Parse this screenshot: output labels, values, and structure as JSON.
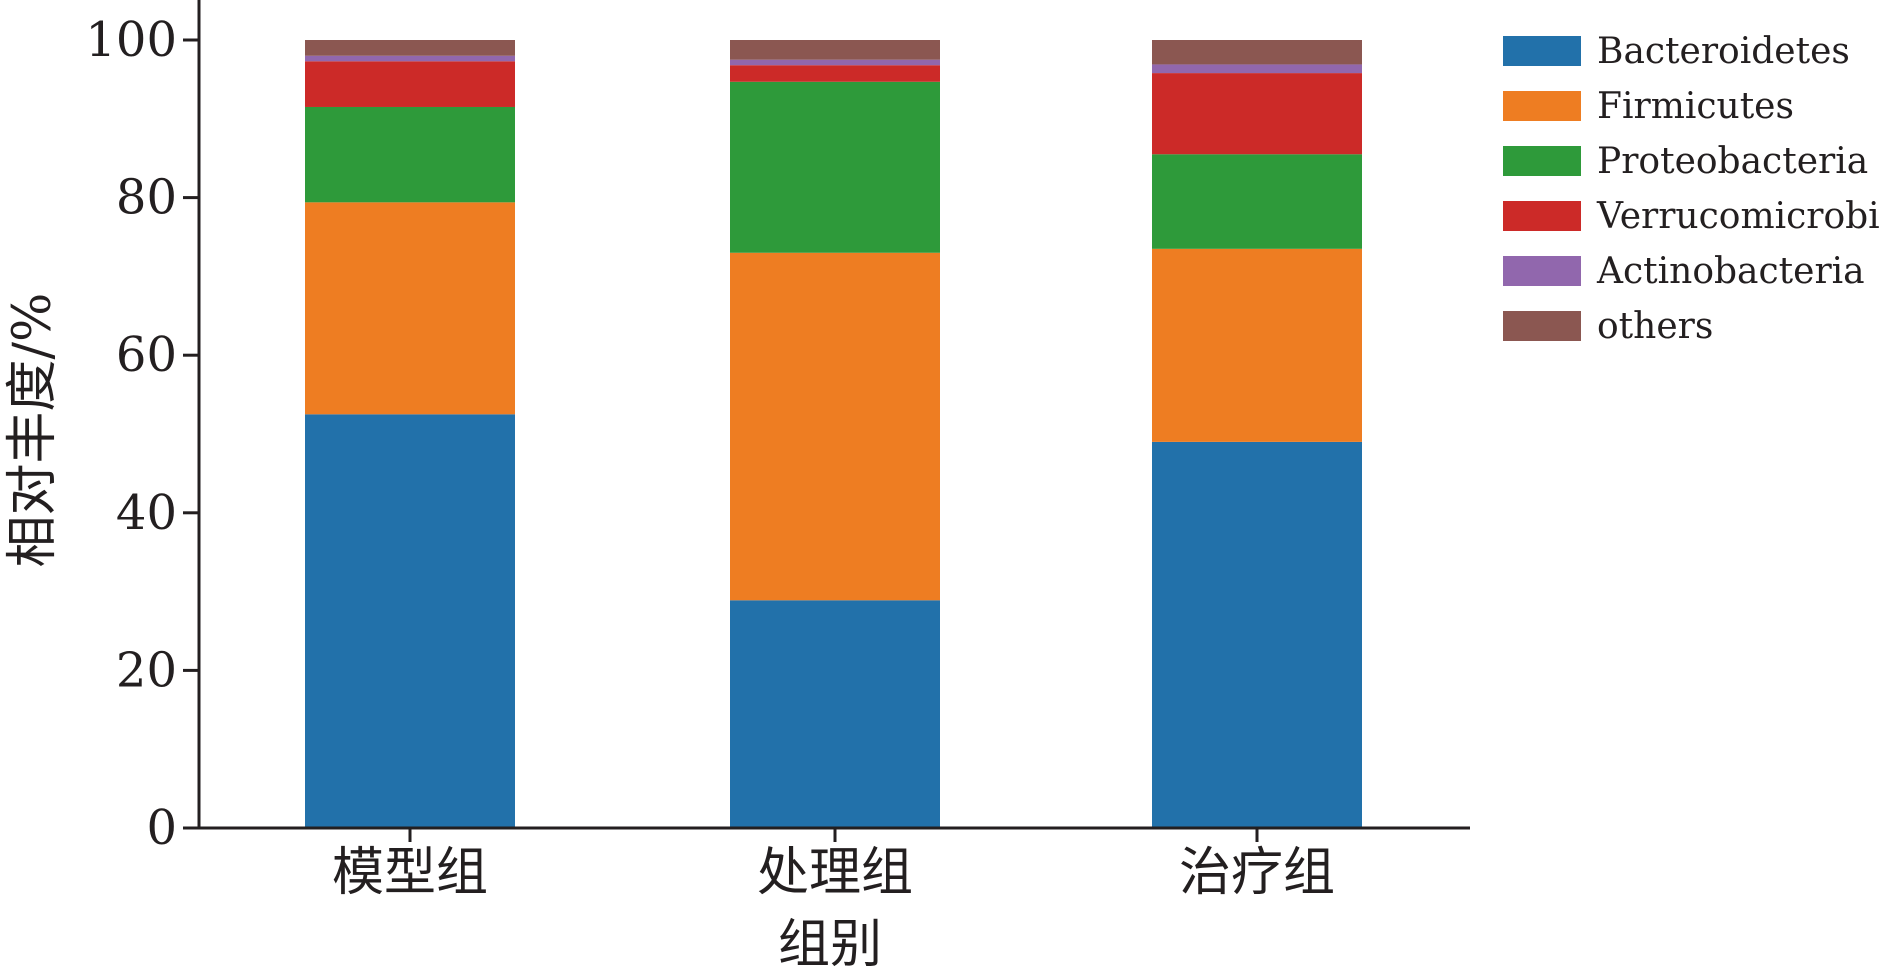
{
  "chart_data": {
    "type": "bar",
    "stacked": true,
    "title": "",
    "xlabel": "组别",
    "ylabel": "相对丰度/%",
    "ylim": [
      0,
      100
    ],
    "yticks": [
      0,
      20,
      40,
      60,
      80,
      100
    ],
    "categories": [
      "模型组",
      "处理组",
      "治疗组"
    ],
    "series": [
      {
        "name": "Bacteroidetes",
        "color": "#2271aa",
        "values": [
          52.5,
          28.9,
          49.0
        ]
      },
      {
        "name": "Firmicutes",
        "color": "#ee7d22",
        "values": [
          26.9,
          44.1,
          24.5
        ]
      },
      {
        "name": "Proteobacteria",
        "color": "#2e9a3a",
        "values": [
          12.1,
          21.7,
          12.0
        ]
      },
      {
        "name": "Verrucomicrobia",
        "color": "#cc2a28",
        "values": [
          5.8,
          2.1,
          10.3
        ]
      },
      {
        "name": "Actinobacteria",
        "color": "#9167ad",
        "values": [
          0.7,
          0.7,
          1.1
        ]
      },
      {
        "name": "others",
        "color": "#8b5751",
        "values": [
          2.0,
          2.5,
          3.1
        ]
      }
    ],
    "grid": false,
    "legend_position": "right"
  }
}
